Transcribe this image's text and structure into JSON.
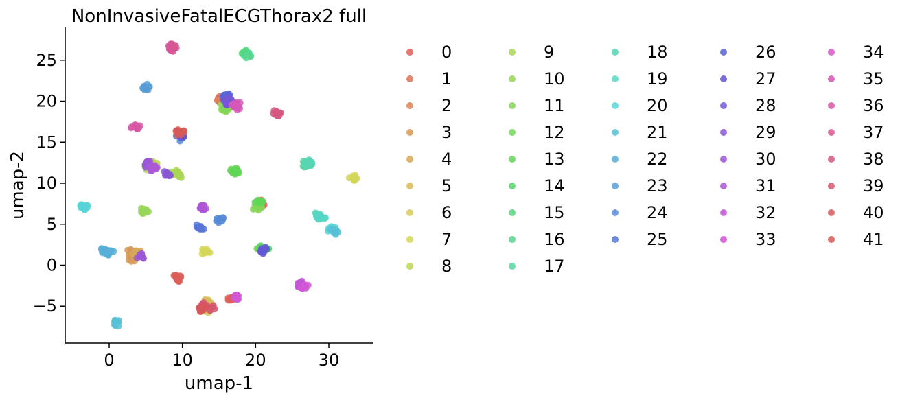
{
  "chart_data": {
    "type": "scatter",
    "title": "NonInvasiveFatalECGThorax2 full",
    "xlabel": "umap-1",
    "ylabel": "umap-2",
    "xlim": [
      -6,
      36
    ],
    "ylim": [
      -9.5,
      29
    ],
    "xticks": [
      0,
      10,
      20,
      30
    ],
    "yticks": [
      -5,
      0,
      5,
      10,
      15,
      20,
      25
    ],
    "grid": false,
    "legend_placement": "right",
    "series": [
      {
        "name": "0",
        "color": "#db5f57",
        "points": [
          [
            9.3,
            -1.6
          ],
          [
            16.8,
            -4.1
          ],
          [
            20.8,
            7.4
          ]
        ]
      },
      {
        "name": "1",
        "color": "#db7257",
        "points": [
          [
            15.3,
            20.2
          ],
          [
            20.6,
            7.5
          ]
        ]
      },
      {
        "name": "2",
        "color": "#db8457",
        "points": [
          [
            15.6,
            20.1
          ]
        ]
      },
      {
        "name": "3",
        "color": "#d69959",
        "points": [
          [
            3.1,
            1.6
          ],
          [
            3.2,
            0.9
          ]
        ]
      },
      {
        "name": "4",
        "color": "#d6a859",
        "points": [
          [
            3.8,
            1.3
          ],
          [
            4.0,
            1.4
          ]
        ]
      },
      {
        "name": "5",
        "color": "#d6bc59",
        "points": [
          [
            13.4,
            -4.6
          ]
        ]
      },
      {
        "name": "6",
        "color": "#d6cb59",
        "points": [
          [
            13.0,
            -5.5
          ]
        ]
      },
      {
        "name": "7",
        "color": "#d3d657",
        "points": [
          [
            13.2,
            1.6
          ],
          [
            33.4,
            10.7
          ]
        ]
      },
      {
        "name": "8",
        "color": "#bbd657",
        "points": [
          [
            5.5,
            12.0
          ],
          [
            6.0,
            12.2
          ]
        ]
      },
      {
        "name": "9",
        "color": "#aad657",
        "points": [
          [
            9.5,
            11.0
          ],
          [
            9.0,
            11.2
          ]
        ]
      },
      {
        "name": "10",
        "color": "#98d657",
        "points": [
          [
            4.9,
            6.7
          ],
          [
            15.7,
            19.3
          ]
        ]
      },
      {
        "name": "11",
        "color": "#85d657",
        "points": [
          [
            16.0,
            19.0
          ],
          [
            20.2,
            7.0
          ]
        ]
      },
      {
        "name": "12",
        "color": "#73d657",
        "points": [
          [
            16.9,
            11.6
          ],
          [
            20.8,
            1.9
          ]
        ]
      },
      {
        "name": "13",
        "color": "#60d657",
        "points": [
          [
            20.5,
            7.6
          ],
          [
            17.3,
            11.5
          ]
        ]
      },
      {
        "name": "14",
        "color": "#57d66a",
        "points": [
          [
            21.2,
            2.1
          ]
        ]
      },
      {
        "name": "15",
        "color": "#57d67c",
        "points": [
          [
            18.7,
            25.8
          ]
        ]
      },
      {
        "name": "16",
        "color": "#57d68f",
        "points": [
          [
            18.9,
            25.7
          ]
        ]
      },
      {
        "name": "17",
        "color": "#57d6a1",
        "points": [
          [
            26.8,
            12.3
          ]
        ]
      },
      {
        "name": "18",
        "color": "#57d6b4",
        "points": [
          [
            27.2,
            12.4
          ],
          [
            28.5,
            6.0
          ]
        ]
      },
      {
        "name": "19",
        "color": "#57d6c6",
        "points": [
          [
            28.9,
            5.7
          ]
        ]
      },
      {
        "name": "20",
        "color": "#57d3d6",
        "points": [
          [
            -3.5,
            7.2
          ],
          [
            30.4,
            4.4
          ]
        ]
      },
      {
        "name": "21",
        "color": "#57c1d6",
        "points": [
          [
            1.1,
            -7.0
          ],
          [
            30.7,
            4.1
          ]
        ]
      },
      {
        "name": "22",
        "color": "#57aed6",
        "points": [
          [
            -0.5,
            1.8
          ],
          [
            0.0,
            1.6
          ]
        ]
      },
      {
        "name": "23",
        "color": "#579cd6",
        "points": [
          [
            5.0,
            21.7
          ]
        ]
      },
      {
        "name": "24",
        "color": "#5789d6",
        "points": [
          [
            9.7,
            15.6
          ],
          [
            15.1,
            5.6
          ]
        ]
      },
      {
        "name": "25",
        "color": "#5776d6",
        "points": [
          [
            12.4,
            4.6
          ]
        ]
      },
      {
        "name": "26",
        "color": "#5764d6",
        "points": [
          [
            16.0,
            20.5
          ]
        ]
      },
      {
        "name": "27",
        "color": "#6357d6",
        "points": [
          [
            9.6,
            15.8
          ],
          [
            21.0,
            1.8
          ]
        ]
      },
      {
        "name": "28",
        "color": "#7557d6",
        "points": [
          [
            16.2,
            20.0
          ]
        ]
      },
      {
        "name": "29",
        "color": "#8757d6",
        "points": [
          [
            8.0,
            11.1
          ]
        ]
      },
      {
        "name": "30",
        "color": "#9a57d6",
        "points": [
          [
            4.3,
            1.1
          ],
          [
            5.3,
            12.3
          ]
        ]
      },
      {
        "name": "31",
        "color": "#ac57d6",
        "points": [
          [
            6.1,
            11.8
          ],
          [
            12.7,
            6.9
          ]
        ]
      },
      {
        "name": "32",
        "color": "#bf57d6",
        "points": [
          [
            26.2,
            -2.3
          ]
        ]
      },
      {
        "name": "33",
        "color": "#d157d6",
        "points": [
          [
            17.4,
            -3.8
          ],
          [
            26.6,
            -2.5
          ]
        ]
      },
      {
        "name": "34",
        "color": "#d657c9",
        "points": [
          [
            17.0,
            19.5
          ]
        ]
      },
      {
        "name": "35",
        "color": "#d657b7",
        "points": [
          [
            17.6,
            19.4
          ]
        ]
      },
      {
        "name": "36",
        "color": "#d657a4",
        "points": [
          [
            8.4,
            26.5
          ],
          [
            3.6,
            16.9
          ]
        ]
      },
      {
        "name": "37",
        "color": "#d65792",
        "points": [
          [
            8.6,
            26.6
          ]
        ]
      },
      {
        "name": "38",
        "color": "#d6577f",
        "points": [
          [
            22.9,
            18.5
          ]
        ]
      },
      {
        "name": "39",
        "color": "#d6576d",
        "points": [
          [
            13.0,
            -5.0
          ],
          [
            13.8,
            -5.2
          ]
        ]
      },
      {
        "name": "40",
        "color": "#d6575a",
        "points": [
          [
            12.6,
            -5.3
          ]
        ]
      },
      {
        "name": "41",
        "color": "#d65a57",
        "points": [
          [
            9.7,
            16.2
          ]
        ]
      }
    ]
  }
}
